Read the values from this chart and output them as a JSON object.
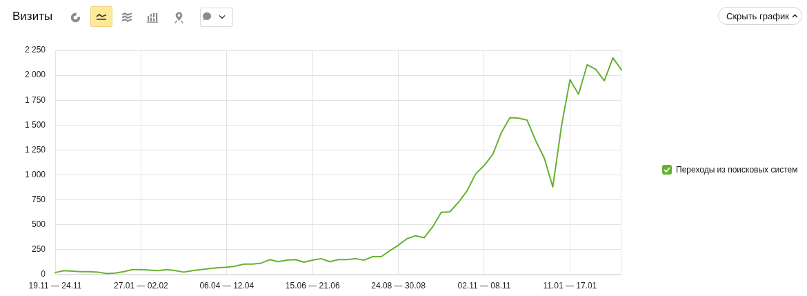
{
  "chart_data": {
    "type": "line",
    "title": "Визиты",
    "annotations": [
      "Скрыть график"
    ],
    "categories": [
      "19.11 — 24.11",
      null,
      null,
      null,
      null,
      null,
      null,
      null,
      null,
      null,
      "27.01 — 02.02",
      null,
      null,
      null,
      null,
      null,
      null,
      null,
      null,
      null,
      "06.04 — 12.04",
      null,
      null,
      null,
      null,
      null,
      null,
      null,
      null,
      null,
      "15.06 — 21.06",
      null,
      null,
      null,
      null,
      null,
      null,
      null,
      null,
      null,
      "24.08 — 30.08",
      null,
      null,
      null,
      null,
      null,
      null,
      null,
      null,
      null,
      "02.11 — 08.11",
      null,
      null,
      null,
      null,
      null,
      null,
      null,
      null,
      null,
      "11.01 — 17.01",
      null,
      null,
      null,
      null,
      null,
      null
    ],
    "series": [
      {
        "name": "Переходы из поисковых систем",
        "color": "#65b22e",
        "values": [
          20,
          40,
          35,
          30,
          30,
          25,
          10,
          15,
          30,
          50,
          50,
          45,
          40,
          50,
          40,
          25,
          40,
          50,
          60,
          70,
          75,
          85,
          105,
          105,
          115,
          150,
          130,
          145,
          150,
          125,
          145,
          160,
          130,
          150,
          150,
          160,
          145,
          180,
          180,
          240,
          295,
          360,
          390,
          370,
          480,
          625,
          630,
          725,
          840,
          1010,
          1095,
          1205,
          1425,
          1575,
          1570,
          1550,
          1345,
          1170,
          880,
          1485,
          1955,
          1810,
          2105,
          2060,
          1945,
          2175,
          2055
        ]
      }
    ],
    "ylim": [
      0,
      2250
    ],
    "yticks": [
      0,
      250,
      500,
      750,
      {
        "value": 1000,
        "label": "1 000"
      },
      {
        "value": 1250,
        "label": "1 250"
      },
      {
        "value": 1500,
        "label": "1 500"
      },
      {
        "value": 1750,
        "label": "1 750"
      },
      {
        "value": 2000,
        "label": "2 000"
      },
      {
        "value": 2250,
        "label": "2 250"
      }
    ],
    "grid": true,
    "legend": "right"
  }
}
